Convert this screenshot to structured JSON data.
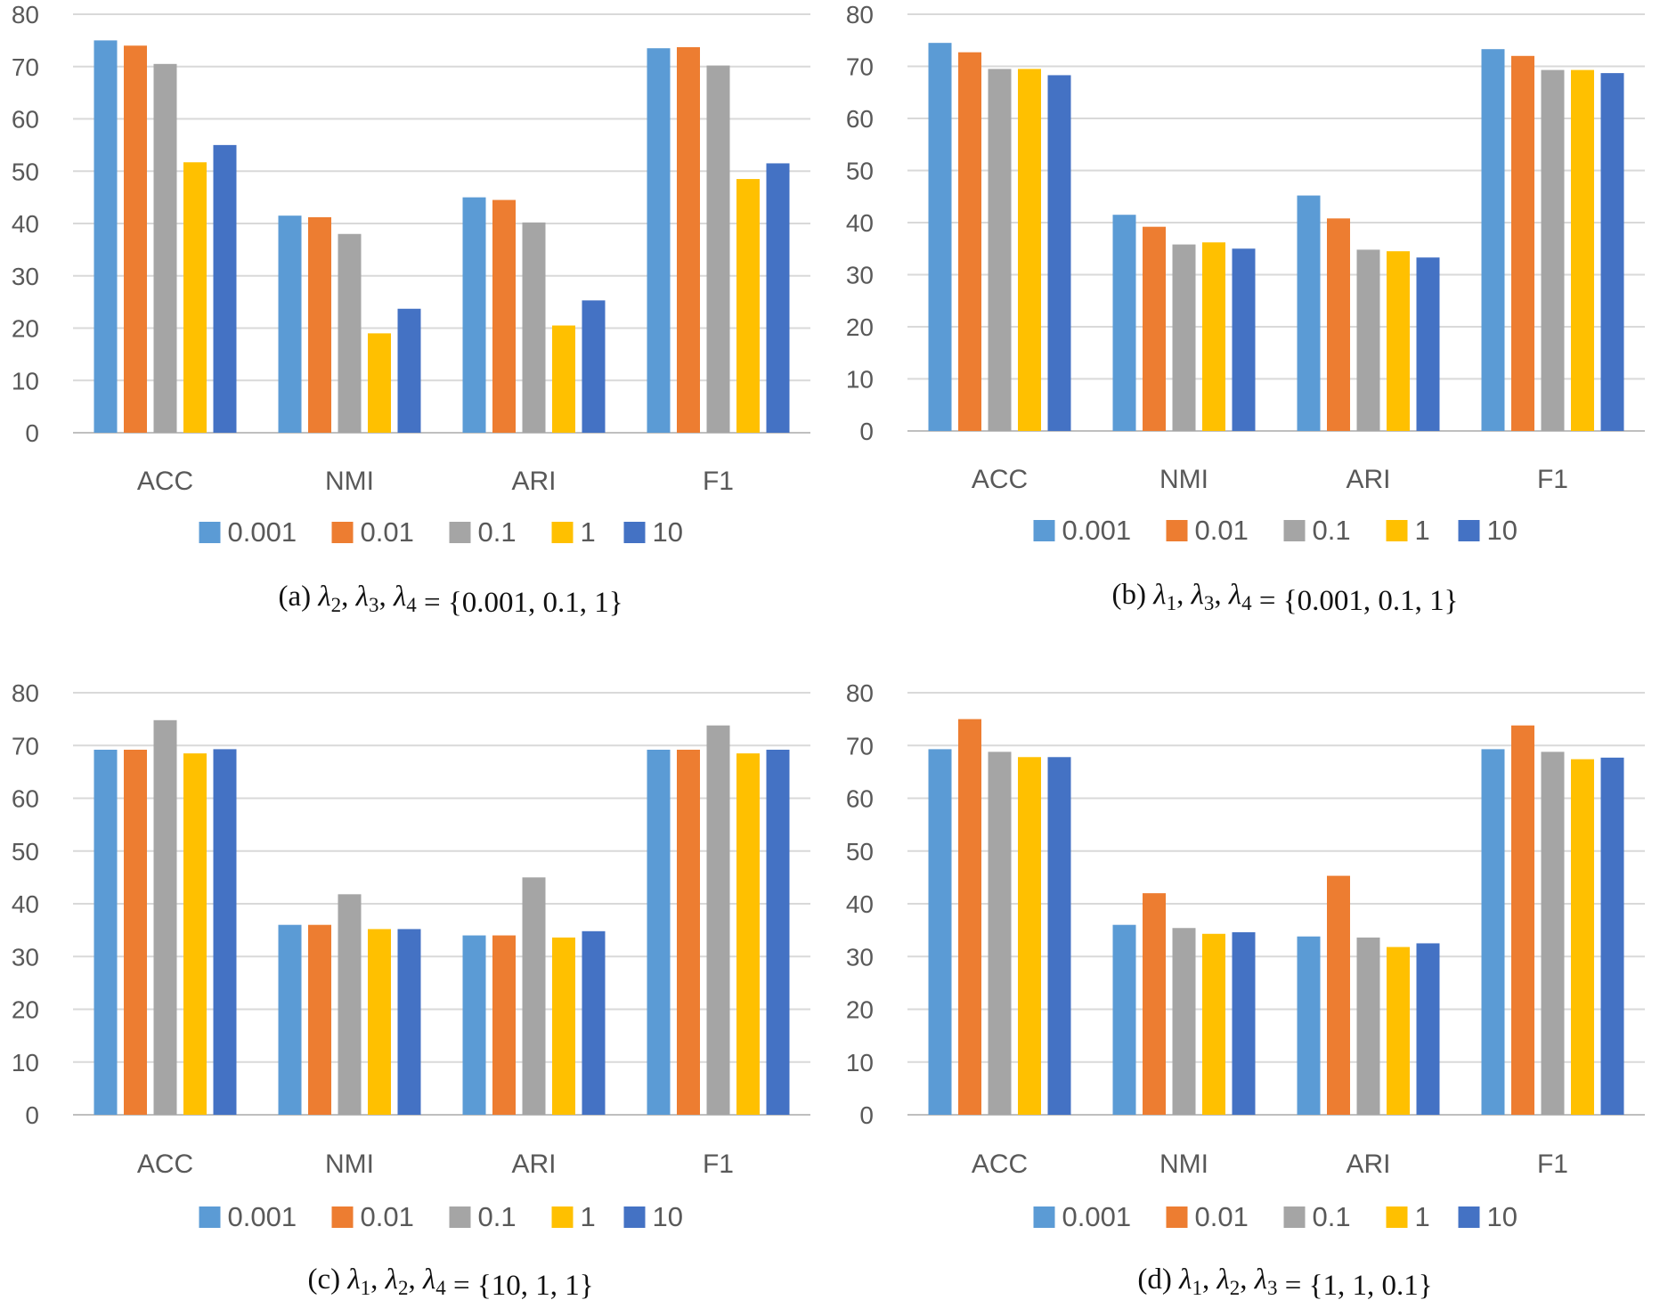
{
  "palette": [
    "#5b9bd5",
    "#ed7d31",
    "#a5a5a5",
    "#ffc000",
    "#4472c4"
  ],
  "chart_data": [
    {
      "type": "bar",
      "categories": [
        "ACC",
        "NMI",
        "ARI",
        "F1"
      ],
      "ylim": [
        0,
        80
      ],
      "yticks": [
        0,
        10,
        20,
        30,
        40,
        50,
        60,
        70,
        80
      ],
      "grid": true,
      "legend_position": "bottom",
      "series": [
        {
          "name": "0.001",
          "values": [
            75,
            41.5,
            45,
            73.5
          ]
        },
        {
          "name": "0.01",
          "values": [
            74,
            41.2,
            44.5,
            73.7
          ]
        },
        {
          "name": "0.1",
          "values": [
            70.5,
            38,
            40.2,
            70.2
          ]
        },
        {
          "name": "1",
          "values": [
            51.7,
            19,
            20.5,
            48.5
          ]
        },
        {
          "name": "10",
          "values": [
            55,
            23.7,
            25.3,
            51.5
          ]
        }
      ],
      "caption": {
        "tag": "(a)",
        "vars": [
          [
            "λ",
            "2"
          ],
          [
            "λ",
            "3"
          ],
          [
            "λ",
            "4"
          ]
        ],
        "eq": " = ",
        "set": "{0.001, 0.1, 1}"
      }
    },
    {
      "type": "bar",
      "categories": [
        "ACC",
        "NMI",
        "ARI",
        "F1"
      ],
      "ylim": [
        0,
        80
      ],
      "yticks": [
        0,
        10,
        20,
        30,
        40,
        50,
        60,
        70,
        80
      ],
      "grid": true,
      "legend_position": "bottom",
      "series": [
        {
          "name": "0.001",
          "values": [
            74.5,
            41.5,
            45.2,
            73.3
          ]
        },
        {
          "name": "0.01",
          "values": [
            72.7,
            39.2,
            40.8,
            72
          ]
        },
        {
          "name": "0.1",
          "values": [
            69.5,
            35.8,
            34.8,
            69.3
          ]
        },
        {
          "name": "1",
          "values": [
            69.5,
            36.2,
            34.5,
            69.3
          ]
        },
        {
          "name": "10",
          "values": [
            68.3,
            35,
            33.3,
            68.7
          ]
        }
      ],
      "caption": {
        "tag": "(b)",
        "vars": [
          [
            "λ",
            "1"
          ],
          [
            "λ",
            "3"
          ],
          [
            "λ",
            "4"
          ]
        ],
        "eq": " = ",
        "set": "{0.001, 0.1, 1}"
      }
    },
    {
      "type": "bar",
      "categories": [
        "ACC",
        "NMI",
        "ARI",
        "F1"
      ],
      "ylim": [
        0,
        80
      ],
      "yticks": [
        0,
        10,
        20,
        30,
        40,
        50,
        60,
        70,
        80
      ],
      "grid": true,
      "legend_position": "bottom",
      "series": [
        {
          "name": "0.001",
          "values": [
            69.2,
            36,
            34,
            69.2
          ]
        },
        {
          "name": "0.01",
          "values": [
            69.2,
            36,
            34,
            69.2
          ]
        },
        {
          "name": "0.1",
          "values": [
            74.8,
            41.8,
            45,
            73.8
          ]
        },
        {
          "name": "1",
          "values": [
            68.5,
            35.2,
            33.6,
            68.5
          ]
        },
        {
          "name": "10",
          "values": [
            69.3,
            35.2,
            34.8,
            69.2
          ]
        }
      ],
      "caption": {
        "tag": "(c)",
        "vars": [
          [
            "λ",
            "1"
          ],
          [
            "λ",
            "2"
          ],
          [
            "λ",
            "4"
          ]
        ],
        "eq": " = ",
        "set": "{10, 1, 1}"
      }
    },
    {
      "type": "bar",
      "categories": [
        "ACC",
        "NMI",
        "ARI",
        "F1"
      ],
      "ylim": [
        0,
        80
      ],
      "yticks": [
        0,
        10,
        20,
        30,
        40,
        50,
        60,
        70,
        80
      ],
      "grid": true,
      "legend_position": "bottom",
      "series": [
        {
          "name": "0.001",
          "values": [
            69.3,
            36,
            33.8,
            69.3
          ]
        },
        {
          "name": "0.01",
          "values": [
            75,
            42,
            45.3,
            73.8
          ]
        },
        {
          "name": "0.1",
          "values": [
            68.8,
            35.4,
            33.6,
            68.8
          ]
        },
        {
          "name": "1",
          "values": [
            67.8,
            34.3,
            31.8,
            67.4
          ]
        },
        {
          "name": "10",
          "values": [
            67.8,
            34.6,
            32.5,
            67.7
          ]
        }
      ],
      "caption": {
        "tag": "(d)",
        "vars": [
          [
            "λ",
            "1"
          ],
          [
            "λ",
            "2"
          ],
          [
            "λ",
            "3"
          ]
        ],
        "eq": " = ",
        "set": "{1, 1, 0.1}"
      }
    }
  ]
}
